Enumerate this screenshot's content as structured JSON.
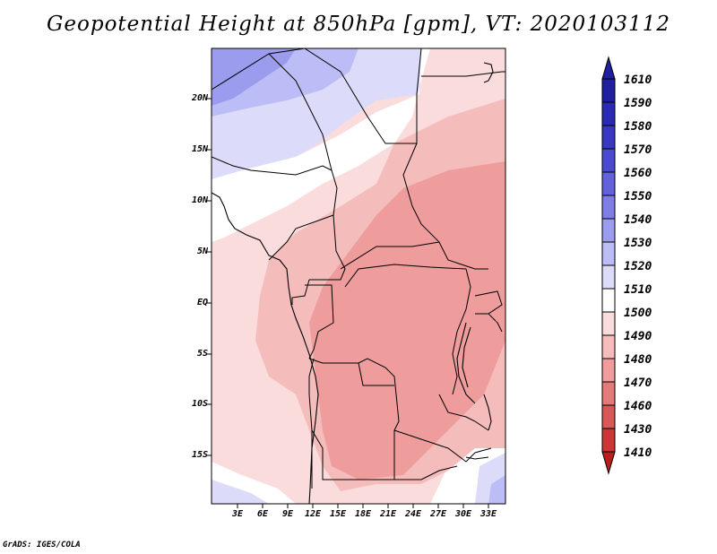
{
  "title": "Geopotential Height at 850hPa [gpm], VT: 2020103112",
  "credit": "GrADS: IGES/COLA",
  "map": {
    "lat_ticks": [
      "20N",
      "15N",
      "10N",
      "5N",
      "EQ",
      "5S",
      "10S",
      "15S"
    ],
    "lon_ticks": [
      "3E",
      "6E",
      "9E",
      "12E",
      "15E",
      "18E",
      "21E",
      "24E",
      "27E",
      "30E",
      "33E"
    ]
  },
  "colorbar": {
    "labels": [
      "1610",
      "1590",
      "1580",
      "1570",
      "1560",
      "1550",
      "1540",
      "1530",
      "1520",
      "1510",
      "1500",
      "1490",
      "1480",
      "1470",
      "1460",
      "1430",
      "1410"
    ],
    "colors": [
      "#1f1fa0",
      "#2a2ab2",
      "#3838c2",
      "#4a4ad0",
      "#6262dc",
      "#7e7ee6",
      "#9c9cee",
      "#bcbcf6",
      "#dcdcfa",
      "#ffffff",
      "#fbdcdc",
      "#f5bcbc",
      "#ee9c9c",
      "#e47a7a",
      "#d85858",
      "#cc3636",
      "#b81e1e"
    ]
  }
}
